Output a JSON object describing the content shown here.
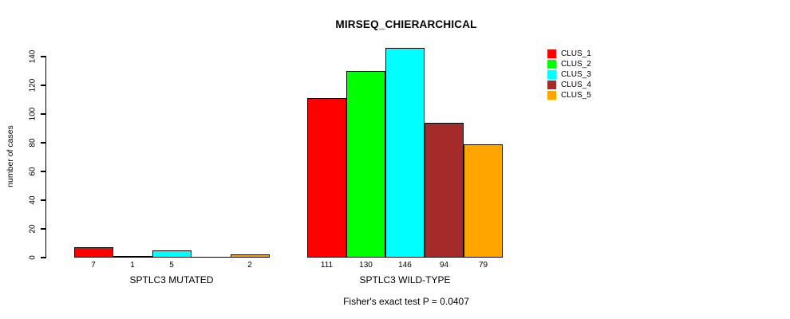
{
  "title": "MIRSEQ_CHIERARCHICAL",
  "footer": "Fisher's exact test P = 0.0407",
  "chart_data": {
    "type": "bar",
    "title": "MIRSEQ_CHIERARCHICAL",
    "xlabel": "",
    "ylabel": "number of cases",
    "ylim": [
      0,
      146
    ],
    "yticks": [
      0,
      20,
      40,
      60,
      80,
      100,
      120,
      140
    ],
    "grid": false,
    "legend_position": "top-right",
    "legend_box": false,
    "categories": [
      "SPTLC3 MUTATED",
      "SPTLC3 WILD-TYPE"
    ],
    "series": [
      {
        "name": "CLUS_1",
        "color": "#FF0000",
        "values": [
          7,
          111
        ]
      },
      {
        "name": "CLUS_2",
        "color": "#00FF00",
        "values": [
          1,
          130
        ]
      },
      {
        "name": "CLUS_3",
        "color": "#00FFFF",
        "values": [
          5,
          146
        ]
      },
      {
        "name": "CLUS_4",
        "color": "#A52A2A",
        "values": [
          0,
          94
        ]
      },
      {
        "name": "CLUS_5",
        "color": "#FFA500",
        "values": [
          2,
          79
        ]
      }
    ],
    "groups": [
      {
        "label": "SPTLC3 MUTATED",
        "values": [
          7,
          1,
          5,
          0,
          2
        ],
        "value_labels": [
          "7",
          "1",
          "5",
          "",
          "2"
        ]
      },
      {
        "label": "SPTLC3 WILD-TYPE",
        "values": [
          111,
          130,
          146,
          94,
          79
        ],
        "value_labels": [
          "111",
          "130",
          "146",
          "94",
          "79"
        ]
      }
    ],
    "annotation": "Fisher's exact test P = 0.0407"
  }
}
